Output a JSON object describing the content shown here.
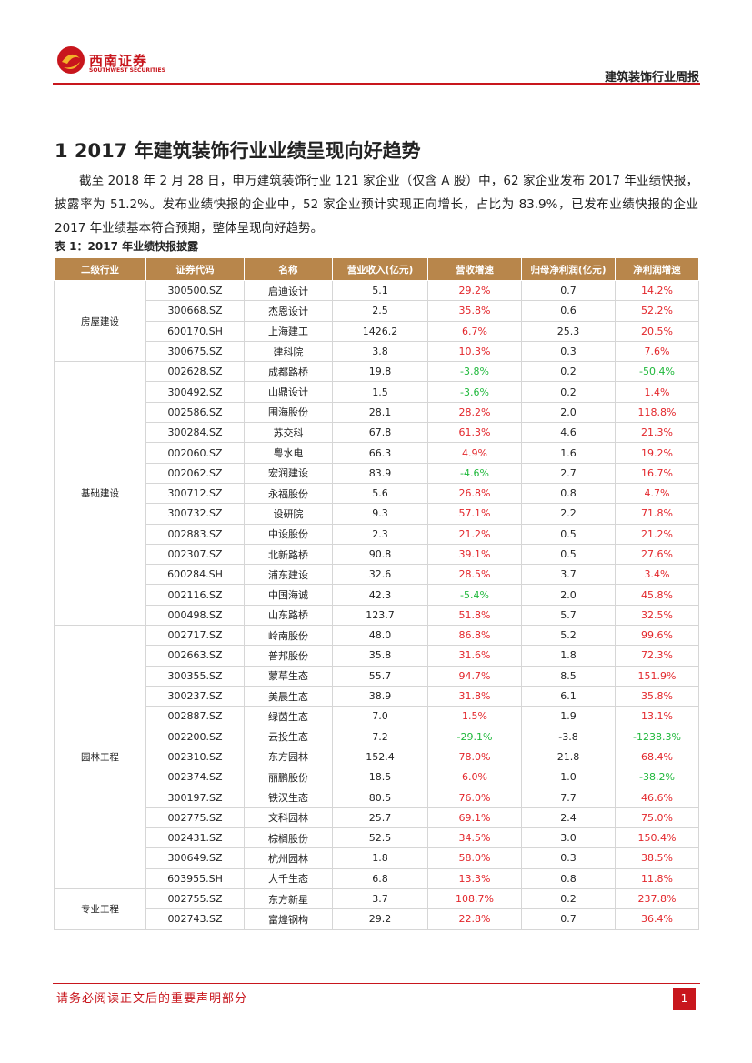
{
  "header": {
    "logo_cn": "西南证券",
    "logo_en": "SOUTHWEST SECURITIES",
    "report_name": "建筑装饰行业周报"
  },
  "section": {
    "title": "1 2017 年建筑装饰行业业绩呈现向好趋势",
    "paragraph": "截至 2018 年 2 月 28 日，申万建筑装饰行业 121 家企业（仅含 A 股）中，62 家企业发布 2017 年业绩快报，披露率为 51.2%。发布业绩快报的企业中，52 家企业预计实现正向增长，占比为 83.9%，已发布业绩快报的企业 2017 年业绩基本符合预期，整体呈现向好趋势。"
  },
  "table": {
    "caption": "表 1：2017 年业绩快报披露",
    "header": [
      "二级行业",
      "证券代码",
      "名称",
      "营业收入(亿元)",
      "营收增速",
      "归母净利润(亿元)",
      "净利润增速"
    ],
    "groups": [
      {
        "name": "房屋建设",
        "rows": [
          [
            "300500.SZ",
            "启迪设计",
            "5.1",
            "29.2%",
            "0.7",
            "14.2%"
          ],
          [
            "300668.SZ",
            "杰恩设计",
            "2.5",
            "35.8%",
            "0.6",
            "52.2%"
          ],
          [
            "600170.SH",
            "上海建工",
            "1426.2",
            "6.7%",
            "25.3",
            "20.5%"
          ],
          [
            "300675.SZ",
            "建科院",
            "3.8",
            "10.3%",
            "0.3",
            "7.6%"
          ]
        ]
      },
      {
        "name": "基础建设",
        "rows": [
          [
            "002628.SZ",
            "成都路桥",
            "19.8",
            "-3.8%",
            "0.2",
            "-50.4%"
          ],
          [
            "300492.SZ",
            "山鼎设计",
            "1.5",
            "-3.6%",
            "0.2",
            "1.4%"
          ],
          [
            "002586.SZ",
            "围海股份",
            "28.1",
            "28.2%",
            "2.0",
            "118.8%"
          ],
          [
            "300284.SZ",
            "苏交科",
            "67.8",
            "61.3%",
            "4.6",
            "21.3%"
          ],
          [
            "002060.SZ",
            "粤水电",
            "66.3",
            "4.9%",
            "1.6",
            "19.2%"
          ],
          [
            "002062.SZ",
            "宏润建设",
            "83.9",
            "-4.6%",
            "2.7",
            "16.7%"
          ],
          [
            "300712.SZ",
            "永福股份",
            "5.6",
            "26.8%",
            "0.8",
            "4.7%"
          ],
          [
            "300732.SZ",
            "设研院",
            "9.3",
            "57.1%",
            "2.2",
            "71.8%"
          ],
          [
            "002883.SZ",
            "中设股份",
            "2.3",
            "21.2%",
            "0.5",
            "21.2%"
          ],
          [
            "002307.SZ",
            "北新路桥",
            "90.8",
            "39.1%",
            "0.5",
            "27.6%"
          ],
          [
            "600284.SH",
            "浦东建设",
            "32.6",
            "28.5%",
            "3.7",
            "3.4%"
          ],
          [
            "002116.SZ",
            "中国海诚",
            "42.3",
            "-5.4%",
            "2.0",
            "45.8%"
          ],
          [
            "000498.SZ",
            "山东路桥",
            "123.7",
            "51.8%",
            "5.7",
            "32.5%"
          ]
        ]
      },
      {
        "name": "园林工程",
        "rows": [
          [
            "002717.SZ",
            "岭南股份",
            "48.0",
            "86.8%",
            "5.2",
            "99.6%"
          ],
          [
            "002663.SZ",
            "普邦股份",
            "35.8",
            "31.6%",
            "1.8",
            "72.3%"
          ],
          [
            "300355.SZ",
            "蒙草生态",
            "55.7",
            "94.7%",
            "8.5",
            "151.9%"
          ],
          [
            "300237.SZ",
            "美晨生态",
            "38.9",
            "31.8%",
            "6.1",
            "35.8%"
          ],
          [
            "002887.SZ",
            "绿茵生态",
            "7.0",
            "1.5%",
            "1.9",
            "13.1%"
          ],
          [
            "002200.SZ",
            "云投生态",
            "7.2",
            "-29.1%",
            "-3.8",
            "-1238.3%"
          ],
          [
            "002310.SZ",
            "东方园林",
            "152.4",
            "78.0%",
            "21.8",
            "68.4%"
          ],
          [
            "002374.SZ",
            "丽鹏股份",
            "18.5",
            "6.0%",
            "1.0",
            "-38.2%"
          ],
          [
            "300197.SZ",
            "铁汉生态",
            "80.5",
            "76.0%",
            "7.7",
            "46.6%"
          ],
          [
            "002775.SZ",
            "文科园林",
            "25.7",
            "69.1%",
            "2.4",
            "75.0%"
          ],
          [
            "002431.SZ",
            "棕榈股份",
            "52.5",
            "34.5%",
            "3.0",
            "150.4%"
          ],
          [
            "300649.SZ",
            "杭州园林",
            "1.8",
            "58.0%",
            "0.3",
            "38.5%"
          ],
          [
            "603955.SH",
            "大千生态",
            "6.8",
            "13.3%",
            "0.8",
            "11.8%"
          ]
        ]
      },
      {
        "name": "专业工程",
        "rows": [
          [
            "002755.SZ",
            "东方新星",
            "3.7",
            "108.7%",
            "0.2",
            "237.8%"
          ],
          [
            "002743.SZ",
            "富煌钢构",
            "29.2",
            "22.8%",
            "0.7",
            "36.4%"
          ]
        ]
      }
    ]
  },
  "footer": {
    "disclaimer": "请务必阅读正文后的重要声明部分",
    "page_number": "1"
  }
}
